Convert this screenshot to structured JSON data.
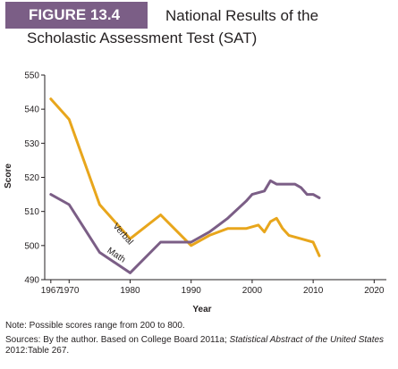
{
  "figure": {
    "label": "FIGURE 13.4",
    "title_line1": "National Results of the",
    "title_line2": "Scholastic Assessment Test (SAT)"
  },
  "notes": {
    "note": "Note: Possible scores range from 200 to 800.",
    "sources_part1": "Sources: By the author. Based on College Board 2011a; ",
    "sources_italic": "Statistical Abstract of the United States",
    "sources_part2": " 2012:Table 267."
  },
  "colors": {
    "verbal": "#e8a61c",
    "math": "#7b5e86",
    "label_bg": "#7b5e86"
  },
  "chart_data": {
    "type": "line",
    "xlabel": "Year",
    "ylabel": "Score",
    "xlim": [
      1966,
      2022
    ],
    "ylim": [
      490,
      550
    ],
    "x_ticks": [
      1967,
      1970,
      1980,
      1990,
      2000,
      2010,
      2020
    ],
    "y_ticks": [
      490,
      500,
      510,
      520,
      530,
      540,
      550
    ],
    "grid": false,
    "series": [
      {
        "name": "Verbal",
        "color": "#e8a61c",
        "x": [
          1967,
          1970,
          1975,
          1980,
          1985,
          1990,
          1993,
          1996,
          1999,
          2001,
          2002,
          2003,
          2004,
          2005,
          2006,
          2008,
          2010,
          2011
        ],
        "y": [
          543,
          537,
          512,
          502,
          509,
          500,
          503,
          505,
          505,
          506,
          504,
          507,
          508,
          505,
          503,
          502,
          501,
          497
        ]
      },
      {
        "name": "Math",
        "color": "#7b5e86",
        "x": [
          1967,
          1970,
          1975,
          1980,
          1985,
          1990,
          1993,
          1996,
          1999,
          2000,
          2002,
          2003,
          2004,
          2005,
          2006,
          2007,
          2008,
          2009,
          2010,
          2011
        ],
        "y": [
          515,
          512,
          498,
          492,
          501,
          501,
          504,
          508,
          513,
          515,
          516,
          519,
          518,
          518,
          518,
          518,
          517,
          515,
          515,
          514
        ]
      }
    ]
  }
}
